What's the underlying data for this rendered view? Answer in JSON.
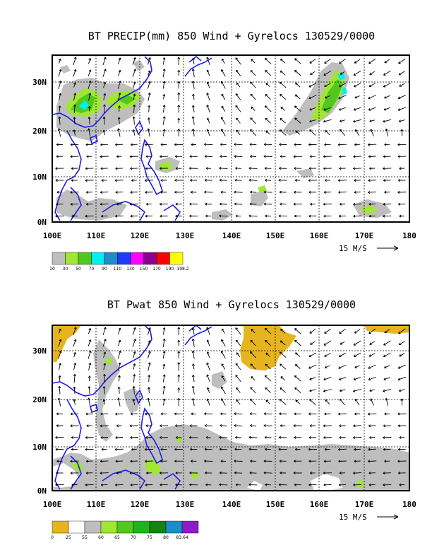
{
  "panels": [
    {
      "title": "BT PRECIP(mm) 850 Wind + Gyrelocs 130529/0000",
      "x_ticks": [
        "100E",
        "110E",
        "120E",
        "130E",
        "140E",
        "150E",
        "160E",
        "170E",
        "180"
      ],
      "y_ticks": [
        "0N",
        "10N",
        "20N",
        "30N"
      ],
      "scale_label": "15 M/S",
      "colorbar": {
        "colors": [
          "#bebebe",
          "#a0e632",
          "#50c81e",
          "#00f0f0",
          "#1e8cc8",
          "#1e3cff",
          "#ff00ff",
          "#8c008c",
          "#ff0000",
          "#ffff00"
        ],
        "labels": [
          "10",
          "30",
          "50",
          "70",
          "90",
          "110",
          "130",
          "150",
          "170",
          "190",
          "198.2"
        ]
      },
      "shaded_fields": [
        {
          "color_index": 0,
          "name": "gray-precip"
        },
        {
          "color_index": 1,
          "name": "lightgreen-precip"
        },
        {
          "color_index": 2,
          "name": "green-precip"
        },
        {
          "color_index": 3,
          "name": "cyan-precip"
        }
      ]
    },
    {
      "title": "BT Pwat 850 Wind + Gyrelocs 130529/0000",
      "x_ticks": [
        "100E",
        "110E",
        "120E",
        "130E",
        "140E",
        "150E",
        "160E",
        "170E",
        "180"
      ],
      "y_ticks": [
        "0N",
        "10N",
        "20N",
        "30N"
      ],
      "scale_label": "15 M/S",
      "colorbar": {
        "colors": [
          "#e6b41e",
          "#ffffff",
          "#bebebe",
          "#a0e632",
          "#50c81e",
          "#1eb41e",
          "#148214",
          "#1e8cc8",
          "#8c1ec8"
        ],
        "labels": [
          "0",
          "25",
          "55",
          "60",
          "65",
          "70",
          "75",
          "80",
          "83.64"
        ]
      }
    }
  ],
  "colors": {
    "coastline": "#1e1ee6",
    "grid": "#000000",
    "frame": "#000000"
  }
}
